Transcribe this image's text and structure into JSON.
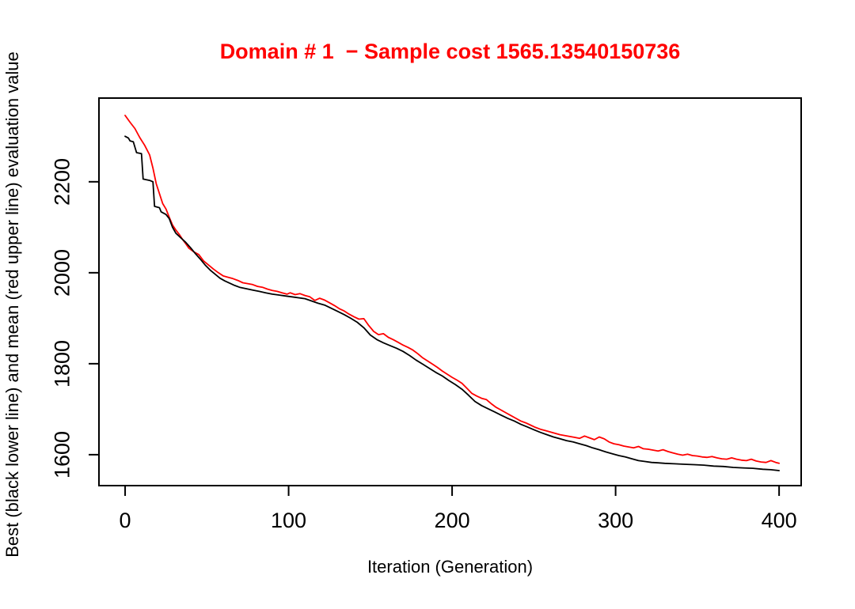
{
  "title": {
    "text": "Domain # 1  − Sample cost 1565.13540150736",
    "color": "#ff0000"
  },
  "chart_data": {
    "type": "line",
    "title": "Domain # 1  − Sample cost 1565.13540150736",
    "xlabel": "Iteration (Generation)",
    "ylabel": "Best (black lower line) and mean (red upper line) evaluation value",
    "sample_cost": "1565.13540150736",
    "domain_number": "1",
    "xlim": [
      -16,
      413.5
    ],
    "ylim": [
      1532,
      2384
    ],
    "x_ticks": [
      0,
      100,
      200,
      300,
      400
    ],
    "x_tick_labels": [
      "0",
      "100",
      "200",
      "300",
      "400"
    ],
    "y_ticks": [
      1600,
      1800,
      2000,
      2200
    ],
    "y_tick_labels": [
      "1600",
      "1800",
      "2000",
      "2200"
    ],
    "grid": false,
    "legend_position": "none",
    "frame_color": "#000000",
    "series": [
      {
        "name": "mean (red upper line)",
        "color": "#ff0000",
        "x": [
          0,
          3,
          6,
          9,
          12,
          15,
          17,
          19,
          21,
          23,
          25,
          27,
          29,
          31,
          33,
          35,
          37,
          39,
          42,
          45,
          48,
          51,
          54,
          57,
          60,
          63,
          66,
          69,
          72,
          75,
          78,
          81,
          84,
          87,
          90,
          93,
          96,
          99,
          101,
          104,
          107,
          110,
          113,
          116,
          119,
          122,
          125,
          128,
          131,
          134,
          137,
          140,
          143,
          146,
          149,
          152,
          155,
          158,
          161,
          164,
          167,
          170,
          173,
          176,
          179,
          182,
          185,
          188,
          191,
          194,
          197,
          200,
          203,
          206,
          209,
          212,
          215,
          218,
          221,
          224,
          227,
          230,
          233,
          236,
          239,
          242,
          245,
          248,
          251,
          254,
          257,
          260,
          263,
          266,
          269,
          272,
          275,
          278,
          281,
          284,
          287,
          290,
          293,
          296,
          299,
          302,
          305,
          308,
          311,
          314,
          317,
          320,
          323,
          326,
          329,
          332,
          335,
          338,
          341,
          344,
          347,
          350,
          353,
          356,
          359,
          362,
          365,
          368,
          371,
          374,
          377,
          380,
          383,
          386,
          389,
          392,
          395,
          398,
          400
        ],
        "y": [
          2346,
          2331,
          2317,
          2297,
          2280,
          2259,
          2230,
          2196,
          2174,
          2152,
          2140,
          2122,
          2105,
          2094,
          2085,
          2074,
          2064,
          2054,
          2046,
          2040,
          2026,
          2017,
          2008,
          2000,
          1993,
          1990,
          1987,
          1983,
          1978,
          1976,
          1974,
          1970,
          1968,
          1964,
          1961,
          1959,
          1956,
          1953,
          1956,
          1952,
          1954,
          1950,
          1947,
          1939,
          1944,
          1940,
          1934,
          1928,
          1921,
          1916,
          1909,
          1903,
          1898,
          1899,
          1884,
          1871,
          1864,
          1866,
          1858,
          1853,
          1847,
          1841,
          1836,
          1830,
          1822,
          1813,
          1806,
          1799,
          1792,
          1784,
          1777,
          1770,
          1764,
          1757,
          1746,
          1735,
          1729,
          1724,
          1721,
          1712,
          1704,
          1698,
          1692,
          1686,
          1680,
          1674,
          1670,
          1665,
          1660,
          1656,
          1653,
          1650,
          1647,
          1644,
          1642,
          1640,
          1638,
          1636,
          1641,
          1637,
          1633,
          1639,
          1635,
          1628,
          1624,
          1622,
          1619,
          1617,
          1615,
          1618,
          1613,
          1612,
          1610,
          1608,
          1611,
          1607,
          1604,
          1601,
          1599,
          1601,
          1598,
          1597,
          1595,
          1594,
          1596,
          1593,
          1591,
          1590,
          1593,
          1590,
          1588,
          1587,
          1590,
          1586,
          1584,
          1583,
          1587,
          1583,
          1581
        ]
      },
      {
        "name": "best (black lower line)",
        "color": "#000000",
        "x": [
          0,
          2,
          3,
          5,
          7,
          10,
          11,
          15,
          17,
          18,
          21,
          22,
          25,
          27,
          29,
          31,
          34,
          37,
          40,
          43,
          46,
          49,
          52,
          55,
          58,
          61,
          64,
          67,
          70,
          74,
          78,
          82,
          86,
          90,
          94,
          98,
          102,
          106,
          110,
          114,
          118,
          122,
          126,
          130,
          134,
          138,
          142,
          146,
          150,
          154,
          158,
          162,
          166,
          170,
          174,
          178,
          182,
          186,
          190,
          194,
          198,
          202,
          206,
          210,
          214,
          218,
          222,
          226,
          230,
          234,
          238,
          242,
          246,
          250,
          254,
          258,
          262,
          266,
          270,
          274,
          278,
          282,
          286,
          290,
          294,
          298,
          302,
          306,
          310,
          314,
          318,
          322,
          326,
          330,
          336,
          342,
          348,
          354,
          360,
          366,
          372,
          378,
          384,
          390,
          395,
          400
        ],
        "y": [
          2300,
          2296,
          2290,
          2288,
          2264,
          2262,
          2206,
          2203,
          2200,
          2146,
          2143,
          2134,
          2128,
          2119,
          2100,
          2087,
          2077,
          2067,
          2055,
          2042,
          2030,
          2017,
          2006,
          1997,
          1988,
          1982,
          1977,
          1972,
          1968,
          1965,
          1962,
          1959,
          1956,
          1953,
          1951,
          1949,
          1947,
          1945,
          1943,
          1938,
          1933,
          1929,
          1922,
          1915,
          1908,
          1900,
          1891,
          1879,
          1863,
          1853,
          1846,
          1840,
          1834,
          1827,
          1818,
          1808,
          1799,
          1790,
          1781,
          1773,
          1763,
          1754,
          1744,
          1731,
          1717,
          1708,
          1701,
          1694,
          1687,
          1680,
          1674,
          1667,
          1661,
          1655,
          1649,
          1644,
          1639,
          1635,
          1631,
          1628,
          1624,
          1620,
          1615,
          1611,
          1606,
          1602,
          1598,
          1595,
          1591,
          1587,
          1585,
          1583,
          1582,
          1581,
          1580,
          1579,
          1578,
          1577,
          1575,
          1574,
          1572,
          1571,
          1570,
          1568,
          1567,
          1565
        ]
      }
    ]
  }
}
